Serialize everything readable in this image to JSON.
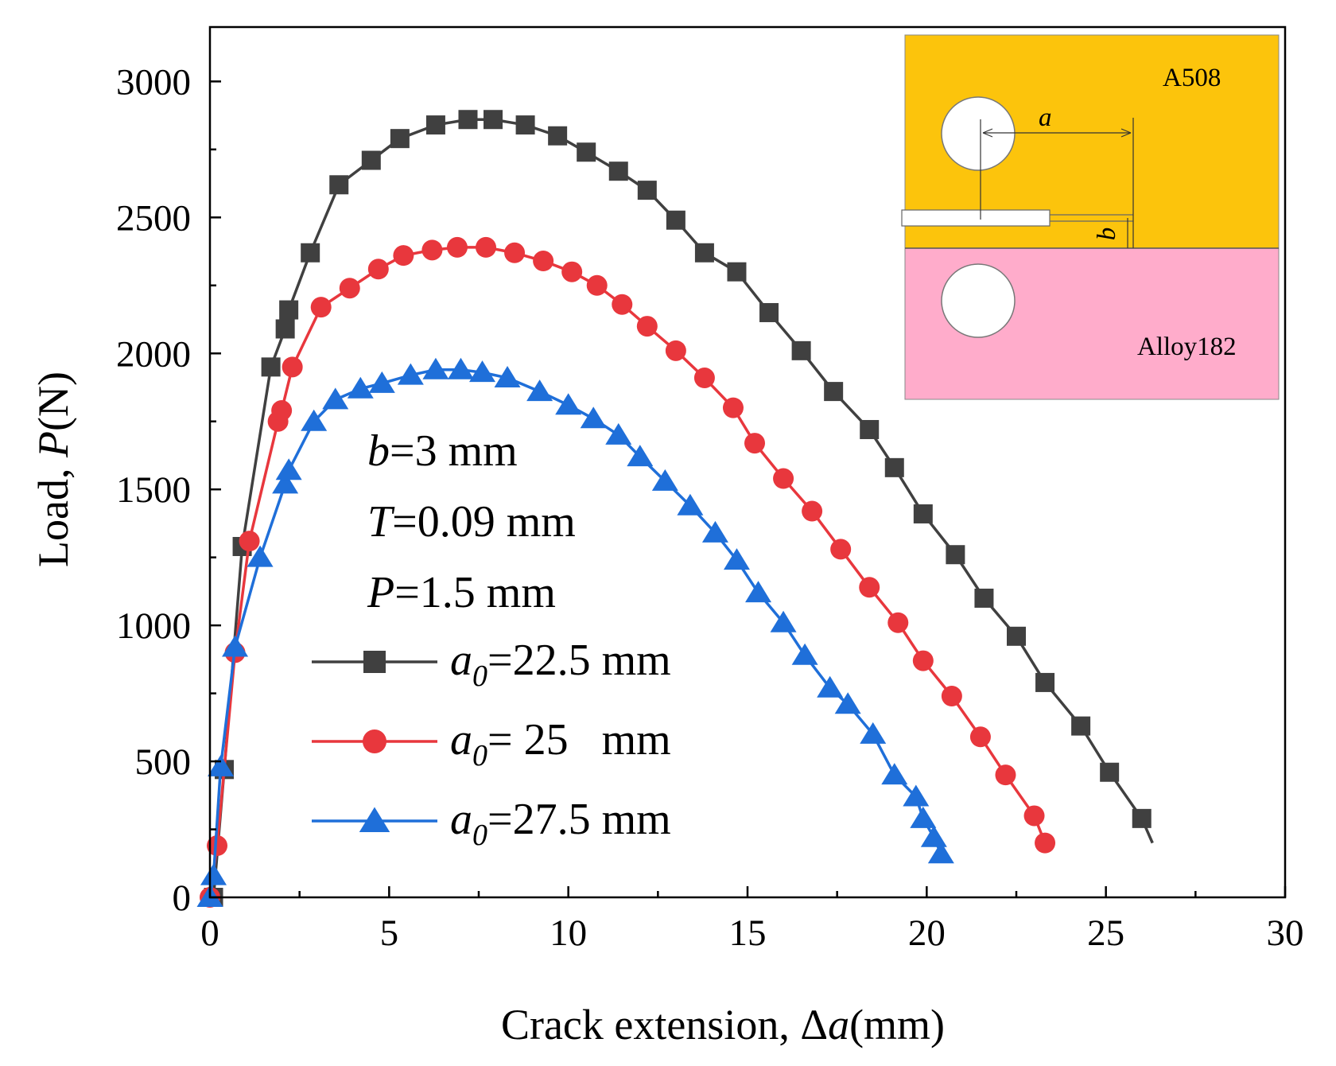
{
  "chart_data": {
    "type": "line",
    "xlabel": "Crack extension,  Δa(mm)",
    "xlabel_prefix": "Crack extension,  Δ",
    "xlabel_var": "a",
    "xlabel_unit": "(mm)",
    "ylabel_prefix": "Load, ",
    "ylabel_var": "P",
    "ylabel_unit": "(N)",
    "xlim": [
      0,
      30
    ],
    "ylim": [
      0,
      3200
    ],
    "xticks": [
      0,
      5,
      10,
      15,
      20,
      25,
      30
    ],
    "yticks": [
      0,
      500,
      1000,
      1500,
      2000,
      2500,
      3000
    ],
    "grid": false,
    "legend_position": "center-left",
    "params": [
      {
        "var": "b",
        "text": "=3 mm"
      },
      {
        "var": "T",
        "text": "=0.09 mm"
      },
      {
        "var": "P",
        "text": "=1.5 mm"
      }
    ],
    "series": [
      {
        "name": "a0=22.5 mm",
        "legend_var": "a",
        "legend_sub": "0",
        "legend_text": "=22.5 mm",
        "color": "#404040",
        "marker": "square",
        "x": [
          0.1,
          0.4,
          0.9,
          1.7,
          2.1,
          2.2,
          2.8,
          3.6,
          4.5,
          5.3,
          6.3,
          7.2,
          7.9,
          8.8,
          9.7,
          10.5,
          11.4,
          12.2,
          13.0,
          13.8,
          14.7,
          15.6,
          16.5,
          17.4,
          18.4,
          19.1,
          19.9,
          20.8,
          21.6,
          22.5,
          23.3,
          24.3,
          25.1,
          26.0
        ],
        "y": [
          0,
          470,
          1290,
          1950,
          2090,
          2160,
          2370,
          2620,
          2710,
          2790,
          2840,
          2860,
          2860,
          2840,
          2800,
          2740,
          2670,
          2600,
          2490,
          2370,
          2300,
          2150,
          2010,
          1860,
          1720,
          1580,
          1410,
          1260,
          1100,
          960,
          790,
          630,
          460,
          290
        ],
        "curve_end": [
          26.3,
          200
        ]
      },
      {
        "name": "a0= 25   mm",
        "legend_var": "a",
        "legend_sub": "0",
        "legend_text": "= 25   mm",
        "color": "#e8373d",
        "marker": "circle",
        "x": [
          0.0,
          0.2,
          0.7,
          1.1,
          1.9,
          2.0,
          2.3,
          3.1,
          3.9,
          4.7,
          5.4,
          6.2,
          6.9,
          7.7,
          8.5,
          9.3,
          10.1,
          10.8,
          11.5,
          12.2,
          13.0,
          13.8,
          14.6,
          15.2,
          16.0,
          16.8,
          17.6,
          18.4,
          19.2,
          19.9,
          20.7,
          21.5,
          22.2,
          23.0,
          23.3
        ],
        "y": [
          0,
          190,
          900,
          1310,
          1750,
          1790,
          1950,
          2170,
          2240,
          2310,
          2360,
          2380,
          2390,
          2390,
          2370,
          2340,
          2300,
          2250,
          2180,
          2100,
          2010,
          1910,
          1800,
          1670,
          1540,
          1420,
          1280,
          1140,
          1010,
          870,
          740,
          590,
          450,
          300,
          200
        ]
      },
      {
        "name": "a0=27.5 mm",
        "legend_var": "a",
        "legend_sub": "0",
        "legend_text": "=27.5 mm",
        "color": "#1f6fd9",
        "marker": "triangle",
        "x": [
          0.0,
          0.1,
          0.3,
          0.7,
          1.4,
          2.1,
          2.2,
          2.9,
          3.5,
          4.2,
          4.8,
          5.6,
          6.3,
          7.0,
          7.6,
          8.3,
          9.2,
          10.0,
          10.7,
          11.4,
          12.0,
          12.7,
          13.4,
          14.1,
          14.7,
          15.3,
          16.0,
          16.6,
          17.3,
          17.8,
          18.5,
          19.1,
          19.7,
          19.9,
          20.2,
          20.4
        ],
        "y": [
          0,
          80,
          480,
          920,
          1250,
          1520,
          1570,
          1750,
          1830,
          1870,
          1890,
          1920,
          1940,
          1940,
          1930,
          1910,
          1860,
          1810,
          1760,
          1700,
          1620,
          1530,
          1440,
          1340,
          1240,
          1120,
          1010,
          890,
          770,
          710,
          600,
          450,
          370,
          290,
          220,
          160
        ]
      }
    ],
    "inset": {
      "top_label": "A508",
      "bottom_label": "Alloy182",
      "dim_a": "a",
      "dim_b": "b",
      "top_color": "#fcc40c",
      "bottom_color": "#ffaccb"
    }
  }
}
